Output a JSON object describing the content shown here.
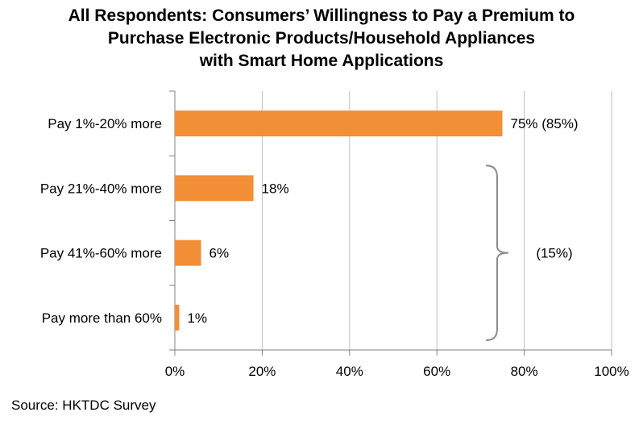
{
  "title_lines": [
    "All Respondents: Consumers’ Willingness to Pay a Premium to",
    "Purchase Electronic Products/Household Appliances",
    "with Smart Home Applications"
  ],
  "source": "Source: HKTDC Survey",
  "colors": {
    "bar": "#F28E36",
    "grid": "#BFBFBF",
    "axis": "#808080",
    "bracket": "#8C8C8C"
  },
  "chart_data": {
    "type": "bar",
    "orientation": "horizontal",
    "categories": [
      "Pay 1%-20% more",
      "Pay 21%-40% more",
      "Pay 41%-60% more",
      "Pay more than 60%"
    ],
    "values": [
      75,
      18,
      6,
      1
    ],
    "value_labels": [
      "75% (85%)",
      "18%",
      "6%",
      "1%"
    ],
    "xlim": [
      0,
      100
    ],
    "xticks": [
      "0%",
      "20%",
      "40%",
      "60%",
      "80%",
      "100%"
    ],
    "grid": true,
    "annotation": {
      "text": "(15%)",
      "type": "bracket",
      "spans_categories": [
        1,
        2,
        3
      ]
    }
  }
}
